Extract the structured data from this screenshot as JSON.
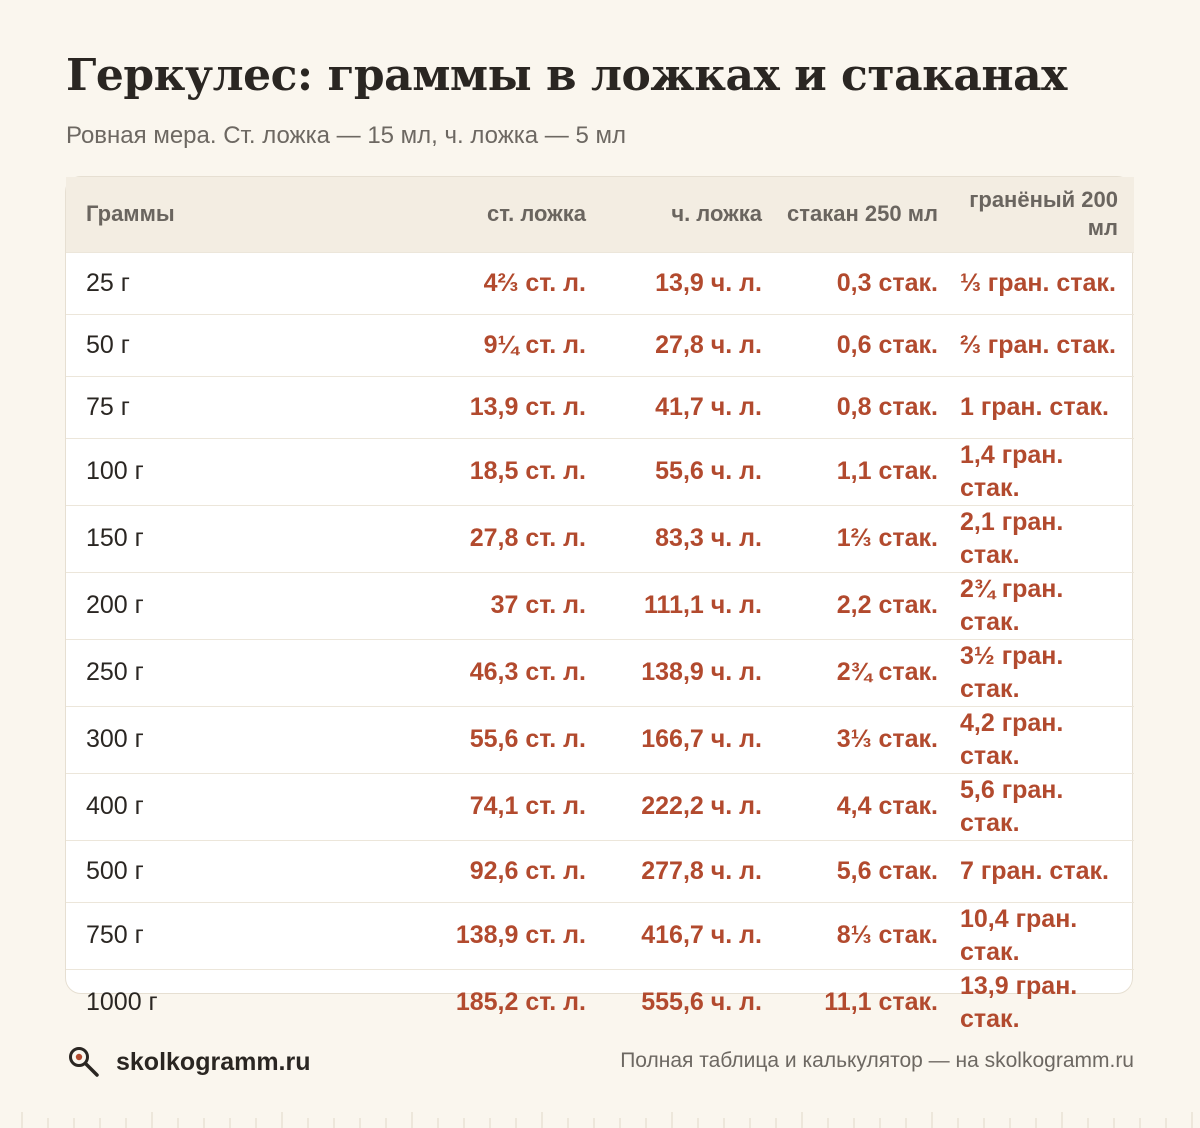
{
  "title": "Геркулес: граммы в ложках и стаканах",
  "subtitle": "Ровная мера. Ст. ложка — 15 мл, ч. ложка — 5 мл",
  "table": {
    "headers": [
      "Граммы",
      "ст. ложка",
      "ч. ложка",
      "стакан 250 мл",
      "гранёный 200 мл"
    ],
    "rows": [
      [
        "25 г",
        "4⅔ ст. л.",
        "13,9 ч. л.",
        "0,3 стак.",
        "⅓ гран. стак."
      ],
      [
        "50 г",
        "9¼ ст. л.",
        "27,8 ч. л.",
        "0,6 стак.",
        "⅔ гран. стак."
      ],
      [
        "75 г",
        "13,9 ст. л.",
        "41,7 ч. л.",
        "0,8 стак.",
        "1 гран. стак."
      ],
      [
        "100 г",
        "18,5 ст. л.",
        "55,6 ч. л.",
        "1,1 стак.",
        "1,4 гран. стак."
      ],
      [
        "150 г",
        "27,8 ст. л.",
        "83,3 ч. л.",
        "1⅔ стак.",
        "2,1 гран. стак."
      ],
      [
        "200 г",
        "37 ст. л.",
        "111,1 ч. л.",
        "2,2 стак.",
        "2¾ гран. стак."
      ],
      [
        "250 г",
        "46,3 ст. л.",
        "138,9 ч. л.",
        "2¾ стак.",
        "3½ гран. стак."
      ],
      [
        "300 г",
        "55,6 ст. л.",
        "166,7 ч. л.",
        "3⅓ стак.",
        "4,2 гран. стак."
      ],
      [
        "400 г",
        "74,1 ст. л.",
        "222,2 ч. л.",
        "4,4 стак.",
        "5,6 гран. стак."
      ],
      [
        "500 г",
        "92,6 ст. л.",
        "277,8 ч. л.",
        "5,6 стак.",
        "7 гран. стак."
      ],
      [
        "750 г",
        "138,9 ст. л.",
        "416,7 ч. л.",
        "8⅓ стак.",
        "10,4 гран. стак."
      ],
      [
        "1000 г",
        "185,2 ст. л.",
        "555,6 ч. л.",
        "11,1 стак.",
        "13,9 гран. стак."
      ]
    ]
  },
  "footer": {
    "logo_icon": "magnifier-icon",
    "brand": "skolkogramm.ru",
    "note": "Полная таблица и калькулятор — на skolkogramm.ru"
  },
  "colors": {
    "background": "#faf6ee",
    "accent": "#b24a2e",
    "header_bg": "#f3ede2"
  }
}
